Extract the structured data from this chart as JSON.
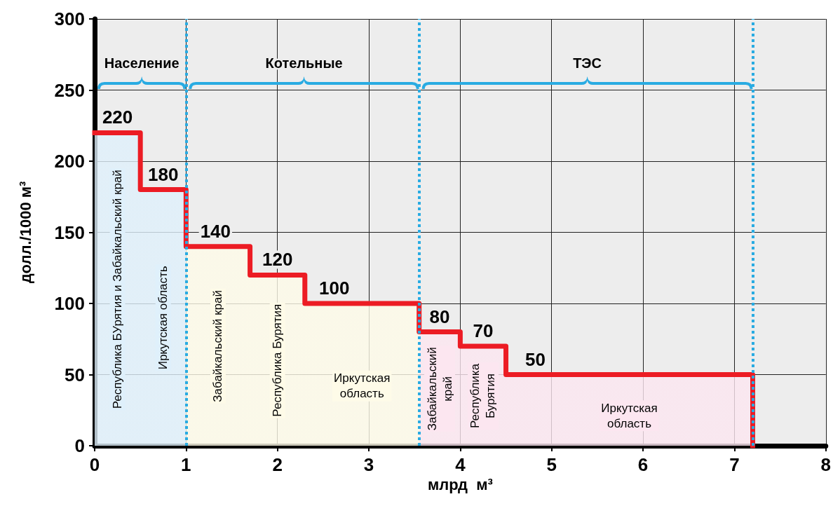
{
  "chart_data": {
    "type": "step",
    "xlabel": "млрд  м³",
    "ylabel": "долл./1000 м³",
    "x": [
      0,
      0.5,
      1.0,
      1.7,
      2.3,
      3.55,
      4.0,
      4.5,
      7.2
    ],
    "series": [
      {
        "color": "#ec1c24",
        "values": [
          220,
          180,
          140,
          120,
          100,
          80,
          70,
          50,
          0
        ],
        "value_labels": [
          "220",
          "180",
          "140",
          "120",
          "100",
          "80",
          "70",
          "50",
          null
        ],
        "colors": [
          "#dff0fb",
          "#dff0fb",
          "#fefbe8",
          "#fefbe8",
          "#fefbe8",
          "#fce6f0",
          "#fce6f0",
          "#fce6f0",
          "#fce6f0"
        ]
      }
    ],
    "xlim": [
      0,
      8
    ],
    "xticks": [
      0,
      1,
      2,
      3,
      4,
      5,
      6,
      7,
      8
    ],
    "ylim": [
      0,
      300
    ],
    "yticks": [
      0,
      50,
      100,
      150,
      200,
      250,
      300
    ],
    "grid": true,
    "marker": "none",
    "line_style": "solid",
    "ref_lines": [
      {
        "axis": "x",
        "value": 1.0,
        "color": "#29abe2",
        "line_style": "dotted"
      },
      {
        "axis": "x",
        "value": 3.55,
        "color": "#29abe2",
        "line_style": "dotted"
      },
      {
        "axis": "x",
        "value": 7.2,
        "color": "#29abe2",
        "line_style": "dotted"
      }
    ],
    "annotations": [
      "Население",
      "Котельные",
      "ТЭС",
      "Республика БУрятия и Забайкальский край",
      "Иркутская область",
      "Забайкальский край",
      "Республика Бурятия",
      "Иркутская область",
      "Забайкальский край",
      "Республика Бурятия",
      "Иркутская область"
    ]
  }
}
